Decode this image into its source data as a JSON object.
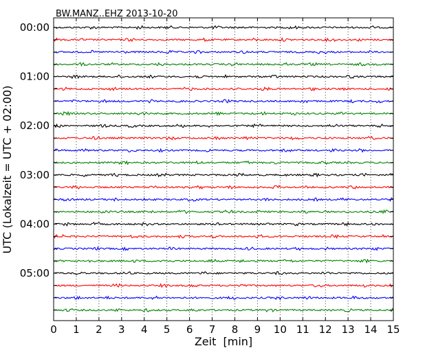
{
  "chart_data": {
    "type": "line",
    "title": "BW.MANZ..EHZ 2013-10-20",
    "xlabel": "Zeit  [min]",
    "ylabel": "UTC (Lokalzeit = UTC + 02:00)",
    "xlim": [
      0,
      15
    ],
    "x_ticks": [
      "0",
      "1",
      "2",
      "3",
      "4",
      "5",
      "6",
      "7",
      "8",
      "9",
      "10",
      "11",
      "12",
      "13",
      "14",
      "15"
    ],
    "y_ticks": [
      "00:00",
      "01:00",
      "02:00",
      "03:00",
      "04:00",
      "05:00"
    ],
    "grid": "vertical dotted",
    "trace_colors": [
      "#000000",
      "#ff0000",
      "#0000ff",
      "#008000"
    ],
    "traces": [
      {
        "start": "00:00",
        "color": "#000000"
      },
      {
        "start": "00:15",
        "color": "#ff0000"
      },
      {
        "start": "00:30",
        "color": "#0000ff"
      },
      {
        "start": "00:45",
        "color": "#008000"
      },
      {
        "start": "01:00",
        "color": "#000000"
      },
      {
        "start": "01:15",
        "color": "#ff0000"
      },
      {
        "start": "01:30",
        "color": "#0000ff"
      },
      {
        "start": "01:45",
        "color": "#008000"
      },
      {
        "start": "02:00",
        "color": "#000000"
      },
      {
        "start": "02:15",
        "color": "#ff0000"
      },
      {
        "start": "02:30",
        "color": "#0000ff"
      },
      {
        "start": "02:45",
        "color": "#008000"
      },
      {
        "start": "03:00",
        "color": "#000000"
      },
      {
        "start": "03:15",
        "color": "#ff0000"
      },
      {
        "start": "03:30",
        "color": "#0000ff"
      },
      {
        "start": "03:45",
        "color": "#008000"
      },
      {
        "start": "04:00",
        "color": "#000000"
      },
      {
        "start": "04:15",
        "color": "#ff0000"
      },
      {
        "start": "04:30",
        "color": "#0000ff"
      },
      {
        "start": "04:45",
        "color": "#008000"
      },
      {
        "start": "05:00",
        "color": "#000000"
      },
      {
        "start": "05:15",
        "color": "#ff0000"
      },
      {
        "start": "05:30",
        "color": "#0000ff"
      },
      {
        "start": "05:45",
        "color": "#008000"
      }
    ]
  }
}
